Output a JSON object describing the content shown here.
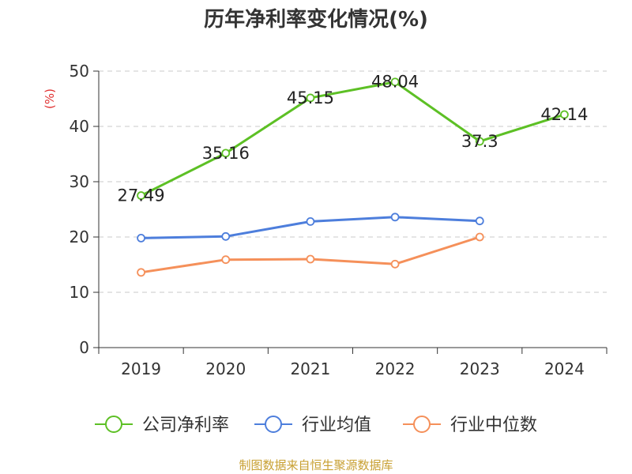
{
  "title": "历年净利率变化情况(%)",
  "source": "制图数据来自恒生聚源数据库",
  "chart_data": {
    "type": "line",
    "categories": [
      "2019",
      "2020",
      "2021",
      "2022",
      "2023",
      "2024"
    ],
    "ylabel": "(%)",
    "ylim": [
      0,
      50
    ],
    "yticks": [
      0,
      10,
      20,
      30,
      40,
      50
    ],
    "grid": true,
    "legend_position": "bottom",
    "series": [
      {
        "name": "公司净利率",
        "color": "#5dc025",
        "values": [
          27.49,
          35.16,
          45.15,
          48.04,
          37.3,
          42.14
        ],
        "labels": [
          "27.49",
          "35.16",
          "45.15",
          "48.04",
          "37.3",
          "42.14"
        ]
      },
      {
        "name": "行业均值",
        "color": "#4d7edc",
        "values": [
          19.8,
          20.1,
          22.8,
          23.6,
          22.9,
          null
        ]
      },
      {
        "name": "行业中位数",
        "color": "#f5905a",
        "values": [
          13.6,
          15.9,
          16.0,
          15.1,
          20.0,
          null
        ]
      }
    ]
  }
}
